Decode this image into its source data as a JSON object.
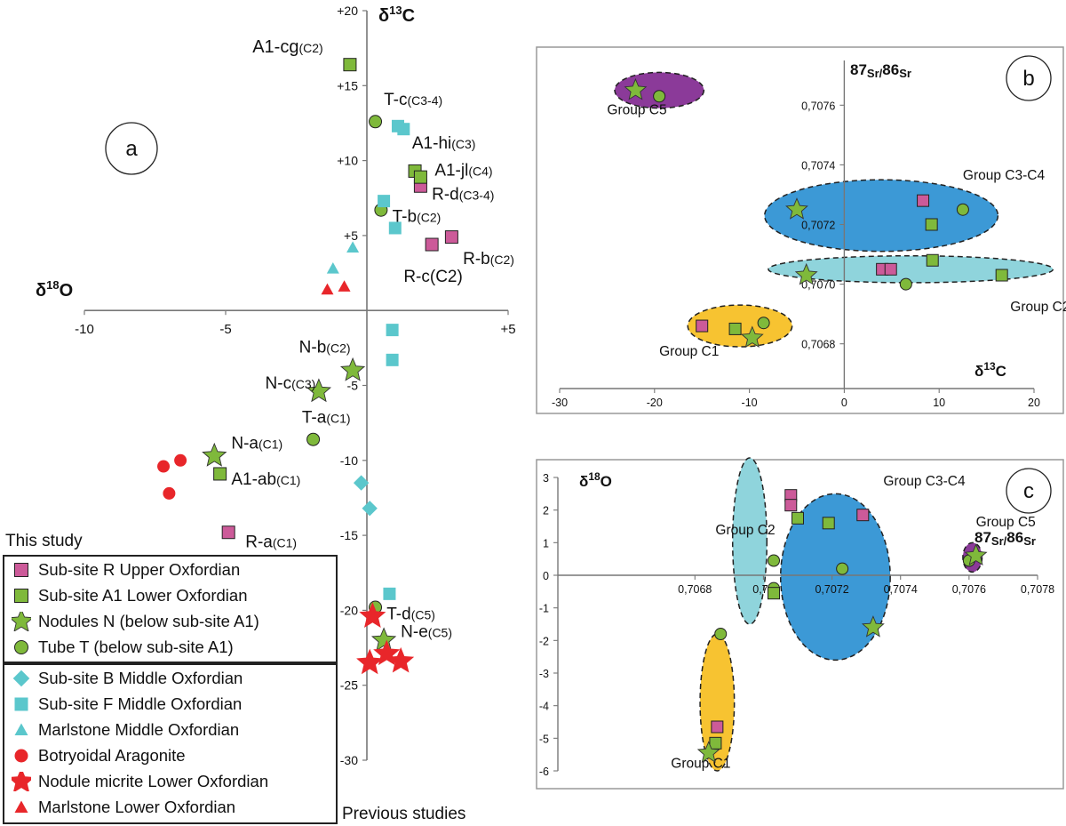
{
  "colors": {
    "pink": "#cc5a99",
    "green": "#7fb93b",
    "cyan": "#5bc7cc",
    "red": "#e8262a",
    "purple": "#8b3a99",
    "blue": "#3c99d6",
    "lightblue": "#8fd4dc",
    "yellow": "#f7c331"
  },
  "chart_data": [
    {
      "id": "a",
      "type": "scatter",
      "panel_label": "a",
      "xlabel_main": "δ",
      "xlabel_sup": "18",
      "xlabel_tail": "O",
      "ylabel_main": "δ",
      "ylabel_sup": "13",
      "ylabel_tail": "C",
      "xlim": [
        -10,
        5
      ],
      "ylim": [
        -30,
        20
      ],
      "x_ticks": [
        {
          "v": -10,
          "t": "-10"
        },
        {
          "v": -5,
          "t": "-5"
        },
        {
          "v": 5,
          "t": "+5"
        }
      ],
      "y_ticks": [
        {
          "v": 20,
          "t": "+20"
        },
        {
          "v": 15,
          "t": "+15"
        },
        {
          "v": 10,
          "t": "+10"
        },
        {
          "v": 5,
          "t": "+5"
        },
        {
          "v": -5,
          "t": "-5"
        },
        {
          "v": -10,
          "t": "-10"
        },
        {
          "v": -15,
          "t": "-15"
        },
        {
          "v": -20,
          "t": "-20"
        },
        {
          "v": -25,
          "t": "-25"
        },
        {
          "v": -30,
          "t": "-30"
        }
      ],
      "points": [
        {
          "series": "R",
          "shape": "square",
          "color": "pink",
          "x": 1.9,
          "y": 8.3
        },
        {
          "series": "R",
          "shape": "square",
          "color": "pink",
          "x": 3.0,
          "y": 4.9
        },
        {
          "series": "R",
          "shape": "square",
          "color": "pink",
          "x": 2.3,
          "y": 4.4
        },
        {
          "series": "R",
          "shape": "square",
          "color": "pink",
          "x": -4.9,
          "y": -14.8
        },
        {
          "series": "A1",
          "shape": "square",
          "color": "green",
          "x": -0.6,
          "y": 16.4
        },
        {
          "series": "A1",
          "shape": "square",
          "color": "green",
          "x": 1.7,
          "y": 9.3
        },
        {
          "series": "A1",
          "shape": "square",
          "color": "green",
          "x": 1.9,
          "y": 8.9
        },
        {
          "series": "A1",
          "shape": "square",
          "color": "green",
          "x": -5.2,
          "y": -10.9
        },
        {
          "series": "N",
          "shape": "star",
          "color": "green",
          "x": -0.5,
          "y": -4.0
        },
        {
          "series": "N",
          "shape": "star",
          "color": "green",
          "x": -1.7,
          "y": -5.4
        },
        {
          "series": "N",
          "shape": "star",
          "color": "green",
          "x": -5.4,
          "y": -9.7
        },
        {
          "series": "N",
          "shape": "star",
          "color": "green",
          "x": 0.6,
          "y": -22.0
        },
        {
          "series": "T",
          "shape": "circle",
          "color": "green",
          "x": 0.3,
          "y": 12.6
        },
        {
          "series": "T",
          "shape": "circle",
          "color": "green",
          "x": 0.5,
          "y": 6.7
        },
        {
          "series": "T",
          "shape": "circle",
          "color": "green",
          "x": -1.9,
          "y": -8.6
        },
        {
          "series": "T",
          "shape": "circle",
          "color": "green",
          "x": 0.3,
          "y": -19.8
        },
        {
          "series": "B",
          "shape": "diamond",
          "color": "cyan",
          "x": -0.2,
          "y": -11.5
        },
        {
          "series": "B",
          "shape": "diamond",
          "color": "cyan",
          "x": 0.1,
          "y": -13.2
        },
        {
          "series": "F",
          "shape": "square-nb",
          "color": "cyan",
          "x": 1.3,
          "y": 12.1
        },
        {
          "series": "F",
          "shape": "square-nb",
          "color": "cyan",
          "x": 1.1,
          "y": 12.3
        },
        {
          "series": "F",
          "shape": "square-nb",
          "color": "cyan",
          "x": 0.6,
          "y": 7.3
        },
        {
          "series": "F",
          "shape": "square-nb",
          "color": "cyan",
          "x": 1.0,
          "y": 5.5
        },
        {
          "series": "F",
          "shape": "square-nb",
          "color": "cyan",
          "x": 0.9,
          "y": -1.3
        },
        {
          "series": "F",
          "shape": "square-nb",
          "color": "cyan",
          "x": 0.9,
          "y": -3.3
        },
        {
          "series": "F",
          "shape": "square-nb",
          "color": "cyan",
          "x": 0.8,
          "y": -18.9
        },
        {
          "series": "ML-M",
          "shape": "triangle",
          "color": "cyan",
          "x": -0.5,
          "y": 4.2
        },
        {
          "series": "ML-M",
          "shape": "triangle",
          "color": "cyan",
          "x": -1.2,
          "y": 2.8
        },
        {
          "series": "BA",
          "shape": "circle-nb",
          "color": "red",
          "x": -7.2,
          "y": -10.4
        },
        {
          "series": "BA",
          "shape": "circle-nb",
          "color": "red",
          "x": -6.6,
          "y": -10.0
        },
        {
          "series": "BA",
          "shape": "circle-nb",
          "color": "red",
          "x": -7.0,
          "y": -12.2
        },
        {
          "series": "NM",
          "shape": "star-nb",
          "color": "red",
          "x": 0.2,
          "y": -20.4
        },
        {
          "series": "NM",
          "shape": "star-nb",
          "color": "red",
          "x": 0.7,
          "y": -22.9
        },
        {
          "series": "NM",
          "shape": "star-nb",
          "color": "red",
          "x": 1.2,
          "y": -23.4
        },
        {
          "series": "NM",
          "shape": "star-nb",
          "color": "red",
          "x": 0.1,
          "y": -23.5
        },
        {
          "series": "ML-L",
          "shape": "triangle",
          "color": "red",
          "x": -1.4,
          "y": 1.4
        },
        {
          "series": "ML-L",
          "shape": "triangle",
          "color": "red",
          "x": -0.8,
          "y": 1.6
        }
      ],
      "labels": [
        {
          "main": "A1-cg",
          "sub": "(C2)",
          "x": -2.8,
          "y": 17.2,
          "size": 20,
          "anchor": "middle"
        },
        {
          "main": "T-c",
          "sub": "(C3-4)",
          "x": 0.6,
          "y": 13.7,
          "size": 19,
          "anchor": "start"
        },
        {
          "main": "A1-hi",
          "sub": "(C3)",
          "x": 1.6,
          "y": 10.8,
          "size": 19,
          "anchor": "start"
        },
        {
          "main": "A1-jl",
          "sub": "(C4)",
          "x": 2.4,
          "y": 9.0,
          "size": 19,
          "anchor": "start"
        },
        {
          "main": "R-d",
          "sub": "(C3-4)",
          "x": 2.3,
          "y": 7.4,
          "size": 19,
          "anchor": "start"
        },
        {
          "main": "T-b",
          "sub": "(C2)",
          "x": 0.9,
          "y": 5.9,
          "size": 19,
          "anchor": "start"
        },
        {
          "main": "R-b",
          "sub": "(C2)",
          "x": 3.4,
          "y": 3.1,
          "size": 19,
          "anchor": "start"
        },
        {
          "main": "R-c(C2)",
          "sub": "",
          "x": 1.3,
          "y": 1.9,
          "size": 19,
          "anchor": "start"
        },
        {
          "main": "N-b",
          "sub": "(C2)",
          "x": -2.4,
          "y": -2.8,
          "size": 19,
          "anchor": "start"
        },
        {
          "main": "N-c",
          "sub": "(C3)",
          "x": -3.6,
          "y": -5.2,
          "size": 19,
          "anchor": "start"
        },
        {
          "main": "T-a",
          "sub": "(C1)",
          "x": -2.3,
          "y": -7.5,
          "size": 19,
          "anchor": "start"
        },
        {
          "main": "N-a",
          "sub": "(C1)",
          "x": -4.8,
          "y": -9.2,
          "size": 19,
          "anchor": "start"
        },
        {
          "main": "A1-ab",
          "sub": "(C1)",
          "x": -4.8,
          "y": -11.6,
          "size": 19,
          "anchor": "start"
        },
        {
          "main": "R-a",
          "sub": "(C1)",
          "x": -4.3,
          "y": -15.8,
          "size": 19,
          "anchor": "start"
        },
        {
          "main": "T-d",
          "sub": "(C5)",
          "x": 0.7,
          "y": -20.6,
          "size": 19,
          "anchor": "start"
        },
        {
          "main": "N-e",
          "sub": "(C5)",
          "x": 1.2,
          "y": -21.8,
          "size": 19,
          "anchor": "start"
        }
      ],
      "footer": "Previous studies"
    },
    {
      "id": "b",
      "type": "scatter",
      "panel_label": "b",
      "xlabel_main": "δ",
      "xlabel_sup": "13",
      "xlabel_tail": "C",
      "ylabel_sup1": "87",
      "ylabel_mid": "Sr/",
      "ylabel_sup2": "86",
      "ylabel_tail": "Sr",
      "xlim": [
        -30,
        20
      ],
      "ylim": [
        0.70665,
        0.70775
      ],
      "x_ticks": [
        {
          "v": -30,
          "t": "-30"
        },
        {
          "v": -20,
          "t": "-20"
        },
        {
          "v": -10,
          "t": "-10"
        },
        {
          "v": 0,
          "t": "0"
        },
        {
          "v": 10,
          "t": "10"
        },
        {
          "v": 20,
          "t": "20"
        }
      ],
      "y_ticks": [
        {
          "v": 0.7068,
          "t": "0,7068"
        },
        {
          "v": 0.707,
          "t": "0,7070"
        },
        {
          "v": 0.7072,
          "t": "0,7072"
        },
        {
          "v": 0.7074,
          "t": "0,7074"
        },
        {
          "v": 0.7076,
          "t": "0,7076"
        }
      ],
      "groups": [
        {
          "name": "Group C5",
          "fill": "purple",
          "cx": -19.5,
          "cy": 0.70765,
          "rx": 4.7,
          "ry": 6e-05,
          "lx": -25,
          "ly": 0.70757
        },
        {
          "name": "Group C3-C4",
          "fill": "blue",
          "cx": 3.9,
          "cy": 0.70723,
          "rx": 12.3,
          "ry": 0.00012,
          "lx": 12.5,
          "ly": 0.70735
        },
        {
          "name": "Group C2",
          "fill": "lightblue",
          "cx": 7.0,
          "cy": 0.70705,
          "rx": 15.0,
          "ry": 4.5e-05,
          "lx": 17.5,
          "ly": 0.70691
        },
        {
          "name": "Group C1",
          "fill": "yellow",
          "cx": -11.0,
          "cy": 0.70686,
          "rx": 5.5,
          "ry": 7e-05,
          "lx": -19.5,
          "ly": 0.70676
        }
      ],
      "points": [
        {
          "shape": "star",
          "color": "green",
          "x": -22,
          "y": 0.70765
        },
        {
          "shape": "circle",
          "color": "green",
          "x": -19.5,
          "y": 0.70763
        },
        {
          "shape": "square",
          "color": "pink",
          "x": 8.3,
          "y": 0.70728
        },
        {
          "shape": "square",
          "color": "green",
          "x": 9.2,
          "y": 0.7072
        },
        {
          "shape": "square",
          "color": "green",
          "x": 9.3,
          "y": 0.70708
        },
        {
          "shape": "star",
          "color": "green",
          "x": -5,
          "y": 0.70725
        },
        {
          "shape": "circle",
          "color": "green",
          "x": 12.5,
          "y": 0.70725
        },
        {
          "shape": "square",
          "color": "pink",
          "x": 4.0,
          "y": 0.70705
        },
        {
          "shape": "square",
          "color": "pink",
          "x": 4.9,
          "y": 0.70705
        },
        {
          "shape": "square",
          "color": "green",
          "x": 16.6,
          "y": 0.70703
        },
        {
          "shape": "star",
          "color": "green",
          "x": -4,
          "y": 0.70703
        },
        {
          "shape": "circle",
          "color": "green",
          "x": 6.5,
          "y": 0.707
        },
        {
          "shape": "square",
          "color": "pink",
          "x": -15,
          "y": 0.70686
        },
        {
          "shape": "square",
          "color": "green",
          "x": -11.5,
          "y": 0.70685
        },
        {
          "shape": "star",
          "color": "green",
          "x": -9.7,
          "y": 0.70682
        },
        {
          "shape": "circle",
          "color": "green",
          "x": -8.5,
          "y": 0.70687
        }
      ]
    },
    {
      "id": "c",
      "type": "scatter",
      "panel_label": "c",
      "xlabel_sup1": "87",
      "xlabel_mid": "Sr/",
      "xlabel_sup2": "86",
      "xlabel_tail": "Sr",
      "ylabel_main": "δ",
      "ylabel_sup": "18",
      "ylabel_tail": "O",
      "xlim": [
        0.7064,
        0.7078
      ],
      "ylim": [
        -6,
        3
      ],
      "x_ticks": [
        {
          "v": 0.7068,
          "t": "0,7068"
        },
        {
          "v": 0.707,
          "t": "0,70"
        },
        {
          "v": 0.7072,
          "t": "0,7072"
        },
        {
          "v": 0.7074,
          "t": "0,7074"
        },
        {
          "v": 0.7076,
          "t": "0,7076"
        },
        {
          "v": 0.7078,
          "t": "0,7078"
        }
      ],
      "y_ticks": [
        {
          "v": 3,
          "t": "3"
        },
        {
          "v": 2,
          "t": "2"
        },
        {
          "v": 1,
          "t": "1"
        },
        {
          "v": 0,
          "t": "0"
        },
        {
          "v": -1,
          "t": "-1"
        },
        {
          "v": -2,
          "t": "-2"
        },
        {
          "v": -3,
          "t": "-3"
        },
        {
          "v": -4,
          "t": "-4"
        },
        {
          "v": -5,
          "t": "-5"
        },
        {
          "v": -6,
          "t": "-6"
        }
      ],
      "groups": [
        {
          "name": "Group C5",
          "fill": "purple",
          "cx": 0.70761,
          "cy": 0.55,
          "rx": 2.8e-05,
          "ry": 0.45,
          "lx": 0.70762,
          "ly": 1.5
        },
        {
          "name": "Group C3-C4",
          "fill": "blue",
          "cx": 0.70721,
          "cy": -0.05,
          "rx": 0.00016,
          "ry": 2.55,
          "lx": 0.70735,
          "ly": 2.75
        },
        {
          "name": "Group C2",
          "fill": "lightblue",
          "cx": 0.70696,
          "cy": 1.05,
          "rx": 5e-05,
          "ry": 2.55,
          "lx": 0.70686,
          "ly": 1.25
        },
        {
          "name": "Group C1",
          "fill": "yellow",
          "cx": 0.706865,
          "cy": -3.9,
          "rx": 5e-05,
          "ry": 2.1,
          "lx": 0.70673,
          "ly": -5.9
        }
      ],
      "points": [
        {
          "shape": "square",
          "color": "pink",
          "x": 0.70708,
          "y": 2.45
        },
        {
          "shape": "square",
          "color": "pink",
          "x": 0.70708,
          "y": 2.15
        },
        {
          "shape": "square",
          "color": "green",
          "x": 0.7071,
          "y": 1.75
        },
        {
          "shape": "square",
          "color": "green",
          "x": 0.70719,
          "y": 1.6
        },
        {
          "shape": "square",
          "color": "pink",
          "x": 0.70729,
          "y": 1.85
        },
        {
          "shape": "circle",
          "color": "green",
          "x": 0.70703,
          "y": 0.45
        },
        {
          "shape": "circle",
          "color": "green",
          "x": 0.70723,
          "y": 0.2
        },
        {
          "shape": "circle",
          "color": "green",
          "x": 0.70703,
          "y": -0.4
        },
        {
          "shape": "square",
          "color": "green",
          "x": 0.70703,
          "y": -0.55
        },
        {
          "shape": "star",
          "color": "green",
          "x": 0.70732,
          "y": -1.6
        },
        {
          "shape": "circle",
          "color": "green",
          "x": 0.7076,
          "y": 0.45
        },
        {
          "shape": "star",
          "color": "green",
          "x": 0.70762,
          "y": 0.6
        },
        {
          "shape": "circle",
          "color": "green",
          "x": 0.706875,
          "y": -1.8
        },
        {
          "shape": "square",
          "color": "pink",
          "x": 0.706865,
          "y": -4.65
        },
        {
          "shape": "square",
          "color": "green",
          "x": 0.70686,
          "y": -5.15
        },
        {
          "shape": "star",
          "color": "green",
          "x": 0.70684,
          "y": -5.45
        }
      ]
    }
  ],
  "legend": {
    "title": "This study",
    "this_study": [
      {
        "label": "Sub-site R Upper Oxfordian",
        "shape": "square",
        "color": "pink"
      },
      {
        "label": "Sub-site A1 Lower Oxfordian",
        "shape": "square",
        "color": "green"
      },
      {
        "label": "Nodules N (below sub-site A1)",
        "shape": "star",
        "color": "green"
      },
      {
        "label": "Tube T (below sub-site A1)",
        "shape": "circle",
        "color": "green"
      }
    ],
    "previous": [
      {
        "label": "Sub-site B Middle Oxfordian",
        "shape": "diamond",
        "color": "cyan"
      },
      {
        "label": "Sub-site F Middle Oxfordian",
        "shape": "square-nb",
        "color": "cyan"
      },
      {
        "label": "Marlstone Middle Oxfordian",
        "shape": "triangle",
        "color": "cyan"
      },
      {
        "label": "Botryoidal Aragonite",
        "shape": "circle-nb",
        "color": "red"
      },
      {
        "label": "Nodule micrite Lower Oxfordian",
        "shape": "star-nb",
        "color": "red"
      },
      {
        "label": "Marlstone Lower Oxfordian",
        "shape": "triangle",
        "color": "red"
      }
    ]
  }
}
